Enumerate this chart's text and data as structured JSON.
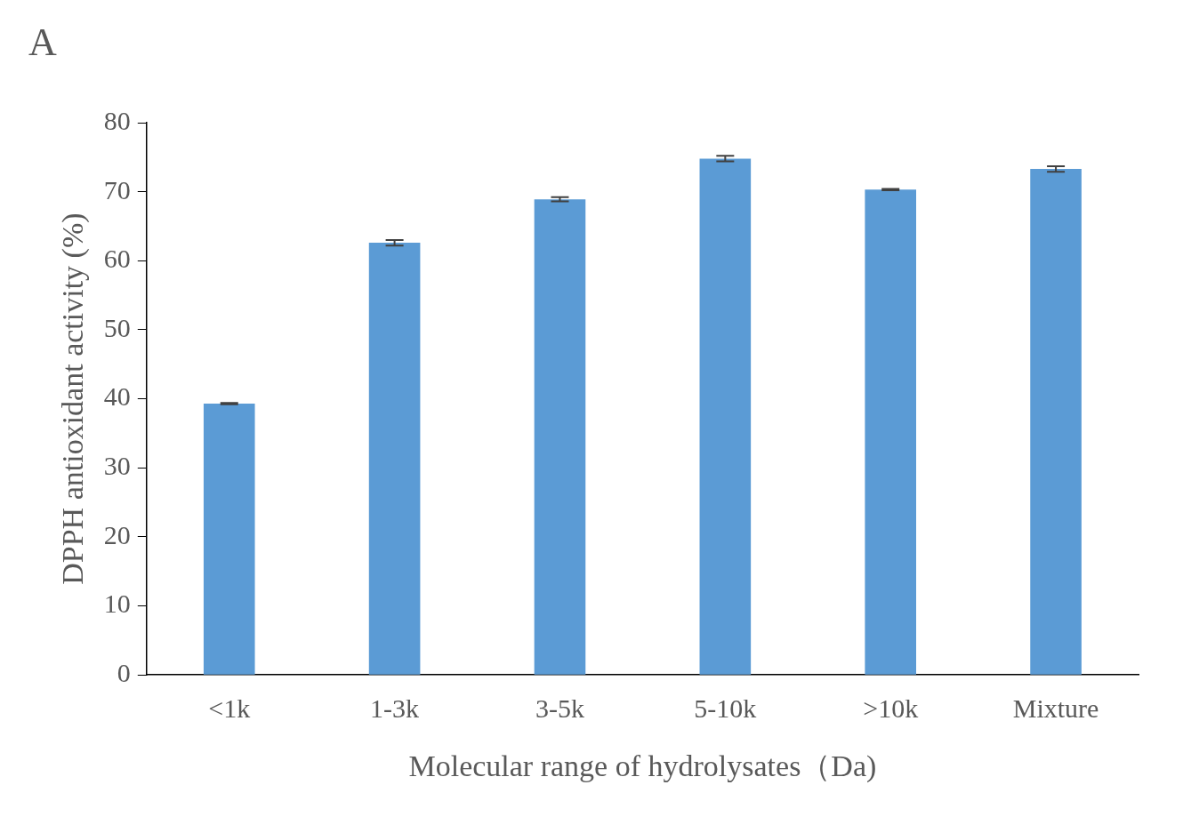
{
  "chart_data": {
    "type": "bar",
    "xlabel": "Molecular range of hydrolysates（Da)",
    "ylabel": "DPPH antioxidant activity (%)",
    "annotations": [
      "A"
    ],
    "categories": [
      "<1k",
      "1-3k",
      "3-5k",
      "5-10k",
      ">10k",
      "Mixture"
    ],
    "values": [
      39.3,
      62.6,
      68.9,
      74.8,
      70.3,
      73.3
    ],
    "errors": [
      0.1,
      0.4,
      0.3,
      0.4,
      0.1,
      0.4
    ],
    "color": "#5b9bd5",
    "ylim": [
      0,
      80
    ],
    "yticks": [
      0,
      10,
      20,
      30,
      40,
      50,
      60,
      70,
      80
    ],
    "grid": false,
    "legend": false
  }
}
